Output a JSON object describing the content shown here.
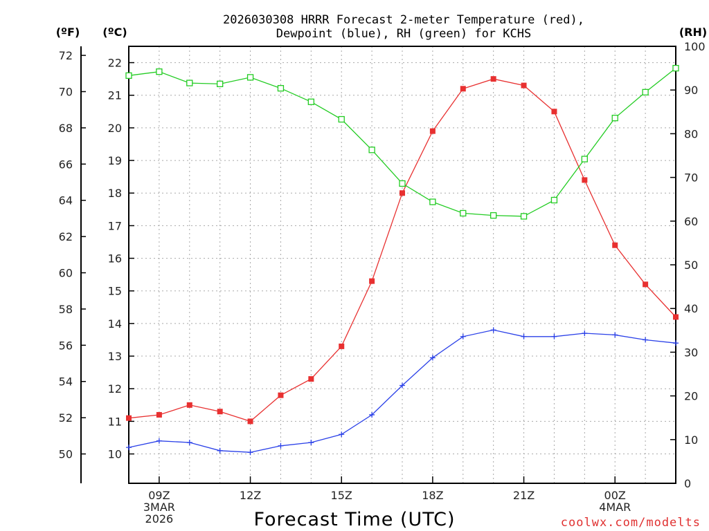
{
  "chart_data": {
    "type": "line",
    "title_line1": "2026030308 HRRR Forecast 2-meter Temperature (red),",
    "title_line2": "Dewpoint (blue), RH (green) for KCHS",
    "xlabel": "Forecast Time (UTC)",
    "credit": "coolwx.com/modelts",
    "unit_labels": {
      "fahrenheit": "(ºF)",
      "celsius": "(ºC)",
      "rh": "(RH)"
    },
    "x_hours": [
      8,
      9,
      10,
      11,
      12,
      13,
      14,
      15,
      16,
      17,
      18,
      19,
      20,
      21,
      22,
      23,
      24,
      25,
      26
    ],
    "x_range": [
      8,
      26
    ],
    "x_ticks": [
      {
        "hour": 9,
        "lines": [
          "09Z",
          "3MAR",
          "2026"
        ]
      },
      {
        "hour": 12,
        "lines": [
          "12Z"
        ]
      },
      {
        "hour": 15,
        "lines": [
          "15Z"
        ]
      },
      {
        "hour": 18,
        "lines": [
          "18Z"
        ]
      },
      {
        "hour": 21,
        "lines": [
          "21Z"
        ]
      },
      {
        "hour": 24,
        "lines": [
          "00Z",
          "4MAR"
        ]
      }
    ],
    "celsius_axis": {
      "range": [
        9.1,
        22.5
      ],
      "ticks": [
        10,
        11,
        12,
        13,
        14,
        15,
        16,
        17,
        18,
        19,
        20,
        21,
        22
      ]
    },
    "fahrenheit_axis": {
      "ticks": [
        50,
        52,
        54,
        56,
        58,
        60,
        62,
        64,
        66,
        68,
        70,
        72
      ]
    },
    "rh_axis": {
      "range": [
        0,
        100
      ],
      "ticks": [
        0,
        10,
        20,
        30,
        40,
        50,
        60,
        70,
        80,
        90,
        100
      ]
    },
    "series": [
      {
        "name": "2-meter Temperature",
        "axis": "celsius",
        "color": "#e83030",
        "marker": "filled-square",
        "values": [
          11.1,
          11.2,
          11.5,
          11.3,
          11.0,
          11.8,
          12.3,
          13.3,
          15.3,
          18.0,
          19.9,
          21.2,
          21.5,
          21.3,
          20.5,
          18.4,
          16.4,
          15.2,
          14.2
        ]
      },
      {
        "name": "Dewpoint",
        "axis": "celsius",
        "color": "#2a40e8",
        "marker": "plus",
        "values": [
          10.2,
          10.4,
          10.35,
          10.1,
          10.05,
          10.25,
          10.35,
          10.6,
          11.2,
          12.1,
          12.95,
          13.6,
          13.8,
          13.6,
          13.6,
          13.7,
          13.65,
          13.5,
          13.4
        ]
      },
      {
        "name": "RH",
        "axis": "rh",
        "color": "#22cc22",
        "marker": "open-square",
        "values": [
          93.3,
          94.2,
          91.6,
          91.4,
          92.9,
          90.4,
          87.3,
          83.3,
          76.3,
          68.6,
          64.4,
          61.8,
          61.3,
          61.1,
          64.8,
          74.2,
          83.6,
          89.5,
          95.0
        ]
      }
    ]
  }
}
